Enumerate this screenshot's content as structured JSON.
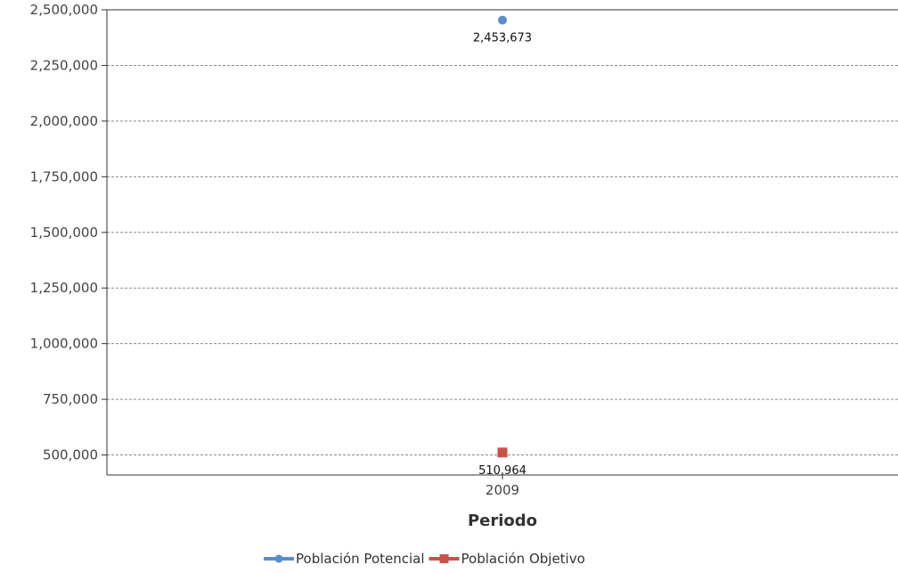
{
  "chart_data": {
    "type": "line",
    "categories": [
      "2009"
    ],
    "series": [
      {
        "name": "Población Potencial",
        "values": [
          2453673
        ],
        "color": "#5b8ec9",
        "marker": "circle",
        "label": "2,453,673"
      },
      {
        "name": "Población Objetivo",
        "values": [
          510964
        ],
        "color": "#c9514a",
        "marker": "square",
        "label": "510,964"
      }
    ],
    "title": "",
    "xlabel": "Periodo",
    "ylabel": "",
    "ylim": [
      410000,
      2500000
    ],
    "yticks": [
      500000,
      750000,
      1000000,
      1250000,
      1500000,
      1750000,
      2000000,
      2250000,
      2500000
    ],
    "ytick_labels": [
      "500,000",
      "750,000",
      "1,000,000",
      "1,250,000",
      "1,500,000",
      "1,750,000",
      "2,000,000",
      "2,250,000",
      "2,500,000"
    ],
    "grid": true,
    "legend_position": "bottom-center"
  }
}
